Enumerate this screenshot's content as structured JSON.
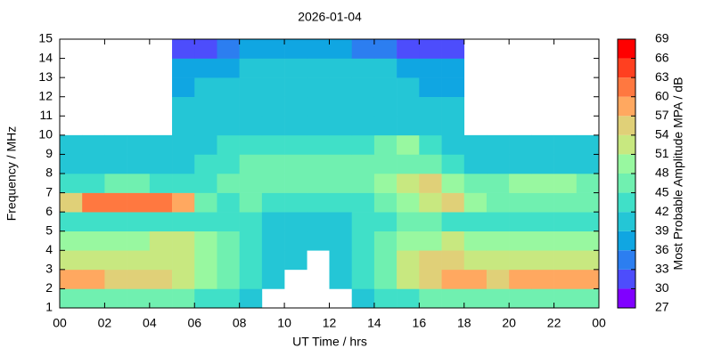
{
  "chart_data": {
    "type": "heatmap",
    "title": "2026-01-04",
    "x_label": "UT Time / hrs",
    "y_label": "Frequency / MHz",
    "colorbar_label": "Most Probable Amplitude MPA / dB",
    "xbins": [
      0,
      1,
      2,
      3,
      4,
      5,
      6,
      7,
      8,
      9,
      10,
      11,
      12,
      13,
      14,
      15,
      16,
      17,
      18,
      19,
      20,
      21,
      22,
      23,
      24
    ],
    "ybins": [
      1,
      2,
      3,
      4,
      5,
      6,
      7,
      8,
      9,
      10,
      11,
      12,
      13,
      14,
      15
    ],
    "xlim": [
      0,
      24
    ],
    "xticks": [
      {
        "value": 0,
        "label": "00"
      },
      {
        "value": 2,
        "label": "02"
      },
      {
        "value": 4,
        "label": "04"
      },
      {
        "value": 6,
        "label": "06"
      },
      {
        "value": 8,
        "label": "08"
      },
      10,
      12,
      14,
      16,
      18,
      20,
      22,
      {
        "value": 24,
        "label": "00"
      }
    ],
    "ylim": [
      1,
      15
    ],
    "yticks": [
      1,
      2,
      3,
      4,
      5,
      6,
      7,
      8,
      9,
      10,
      11,
      12,
      13,
      14,
      15
    ],
    "clim": [
      27,
      69
    ],
    "cticks": [
      27,
      30,
      33,
      36,
      39,
      42,
      45,
      48,
      51,
      54,
      57,
      60,
      63,
      66,
      69
    ],
    "colors": [
      "#8000ff",
      "#4d4dfc",
      "#2c7ef0",
      "#10a6e2",
      "#24c6d6",
      "#40e0c8",
      "#70f0b0",
      "#98f8a0",
      "#c8e880",
      "#e0d078",
      "#ffa860",
      "#ff7840",
      "#ff4020",
      "#ff0000"
    ],
    "z": [
      [
        45,
        45,
        45,
        45,
        45,
        45,
        42,
        42,
        39,
        null,
        null,
        null,
        null,
        39,
        42,
        42,
        45,
        45,
        45,
        45,
        45,
        45,
        45,
        45
      ],
      [
        57,
        57,
        54,
        54,
        54,
        51,
        48,
        45,
        42,
        39,
        null,
        null,
        39,
        42,
        45,
        51,
        54,
        57,
        57,
        54,
        57,
        57,
        57,
        57
      ],
      [
        51,
        51,
        51,
        51,
        51,
        51,
        48,
        45,
        42,
        39,
        39,
        null,
        39,
        42,
        45,
        51,
        54,
        54,
        51,
        51,
        51,
        51,
        51,
        51
      ],
      [
        48,
        48,
        48,
        48,
        51,
        51,
        48,
        45,
        42,
        39,
        39,
        39,
        39,
        42,
        45,
        48,
        48,
        51,
        48,
        48,
        48,
        48,
        48,
        48
      ],
      [
        42,
        42,
        42,
        42,
        42,
        42,
        42,
        42,
        42,
        39,
        39,
        39,
        39,
        42,
        42,
        45,
        45,
        42,
        42,
        42,
        42,
        42,
        42,
        42
      ],
      [
        54,
        60,
        60,
        60,
        60,
        57,
        45,
        42,
        45,
        42,
        42,
        42,
        42,
        42,
        45,
        48,
        51,
        54,
        48,
        45,
        45,
        45,
        45,
        45
      ],
      [
        42,
        42,
        45,
        45,
        42,
        42,
        42,
        45,
        45,
        45,
        45,
        45,
        45,
        45,
        48,
        51,
        54,
        48,
        45,
        45,
        48,
        48,
        48,
        45
      ],
      [
        39,
        39,
        39,
        39,
        39,
        39,
        42,
        42,
        45,
        45,
        45,
        45,
        45,
        45,
        45,
        45,
        45,
        42,
        39,
        39,
        39,
        39,
        39,
        39
      ],
      [
        39,
        39,
        39,
        39,
        39,
        39,
        39,
        42,
        42,
        42,
        42,
        42,
        42,
        42,
        45,
        48,
        42,
        39,
        39,
        39,
        39,
        39,
        39,
        39
      ],
      [
        null,
        null,
        null,
        null,
        null,
        39,
        39,
        39,
        39,
        39,
        39,
        39,
        39,
        39,
        39,
        39,
        39,
        39,
        null,
        null,
        null,
        null,
        null,
        null
      ],
      [
        null,
        null,
        null,
        null,
        null,
        39,
        39,
        39,
        39,
        39,
        39,
        39,
        39,
        39,
        39,
        39,
        39,
        39,
        null,
        null,
        null,
        null,
        null,
        null
      ],
      [
        null,
        null,
        null,
        null,
        null,
        36,
        39,
        39,
        39,
        39,
        39,
        39,
        39,
        39,
        39,
        39,
        36,
        36,
        null,
        null,
        null,
        null,
        null,
        null
      ],
      [
        null,
        null,
        null,
        null,
        null,
        36,
        36,
        36,
        39,
        39,
        39,
        39,
        39,
        39,
        39,
        36,
        36,
        36,
        null,
        null,
        null,
        null,
        null,
        null
      ],
      [
        null,
        null,
        null,
        null,
        null,
        30,
        30,
        33,
        36,
        36,
        36,
        36,
        36,
        33,
        33,
        30,
        30,
        30,
        null,
        null,
        null,
        null,
        null,
        null
      ]
    ]
  }
}
